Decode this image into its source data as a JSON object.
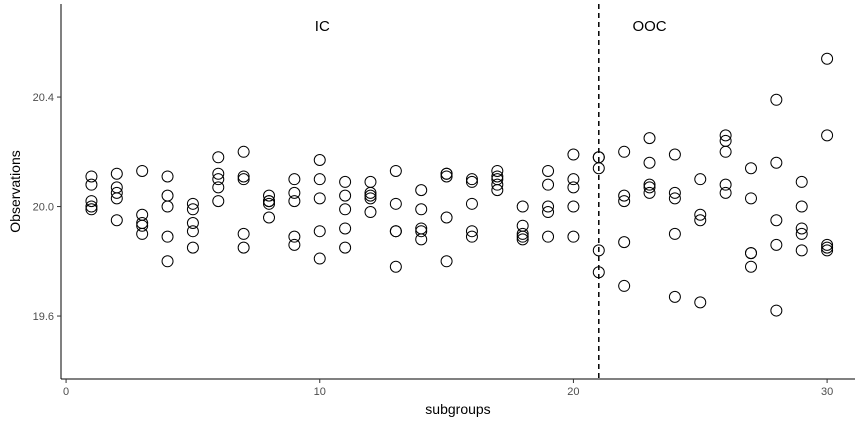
{
  "chart_data": {
    "type": "scatter",
    "title": "",
    "xlabel": "subgroups",
    "ylabel": "Observations",
    "xlim": [
      -0.2,
      31.1
    ],
    "ylim": [
      19.37,
      20.74
    ],
    "xticks": [
      0,
      10,
      20,
      30
    ],
    "xtick_labels": [
      "0",
      "10",
      "20",
      "30"
    ],
    "yticks": [
      19.6,
      20.0,
      20.4
    ],
    "ytick_labels": [
      "19.6",
      "20.0",
      "20.4"
    ],
    "grid": false,
    "legend": "none",
    "vline": {
      "x": 21,
      "style": "dashed"
    },
    "annotations": [
      {
        "text": "IC",
        "x": 10.1,
        "y": 20.66
      },
      {
        "text": "OOC",
        "x": 23.0,
        "y": 20.66
      }
    ],
    "marker": {
      "shape": "open-circle",
      "edge_color": "#000000",
      "fill": "none"
    },
    "points": [
      [
        1,
        20.11
      ],
      [
        1,
        20.08
      ],
      [
        1,
        20.02
      ],
      [
        1,
        20.0
      ],
      [
        1,
        19.99
      ],
      [
        2,
        20.12
      ],
      [
        2,
        20.07
      ],
      [
        2,
        20.05
      ],
      [
        2,
        20.03
      ],
      [
        2,
        19.95
      ],
      [
        3,
        20.13
      ],
      [
        3,
        19.97
      ],
      [
        3,
        19.94
      ],
      [
        3,
        19.93
      ],
      [
        3,
        19.9
      ],
      [
        4,
        20.11
      ],
      [
        4,
        20.04
      ],
      [
        4,
        20.0
      ],
      [
        4,
        19.89
      ],
      [
        4,
        19.8
      ],
      [
        5,
        20.01
      ],
      [
        5,
        19.99
      ],
      [
        5,
        19.94
      ],
      [
        5,
        19.91
      ],
      [
        5,
        19.85
      ],
      [
        6,
        20.18
      ],
      [
        6,
        20.12
      ],
      [
        6,
        20.1
      ],
      [
        6,
        20.07
      ],
      [
        6,
        20.02
      ],
      [
        7,
        20.2
      ],
      [
        7,
        20.11
      ],
      [
        7,
        20.1
      ],
      [
        7,
        19.9
      ],
      [
        7,
        19.85
      ],
      [
        8,
        20.04
      ],
      [
        8,
        20.02
      ],
      [
        8,
        20.02
      ],
      [
        8,
        20.01
      ],
      [
        8,
        19.96
      ],
      [
        9,
        20.1
      ],
      [
        9,
        20.05
      ],
      [
        9,
        20.02
      ],
      [
        9,
        19.89
      ],
      [
        9,
        19.86
      ],
      [
        10,
        20.17
      ],
      [
        10,
        20.1
      ],
      [
        10,
        20.03
      ],
      [
        10,
        19.91
      ],
      [
        10,
        19.81
      ],
      [
        11,
        20.09
      ],
      [
        11,
        20.04
      ],
      [
        11,
        19.99
      ],
      [
        11,
        19.92
      ],
      [
        11,
        19.85
      ],
      [
        12,
        20.09
      ],
      [
        12,
        20.05
      ],
      [
        12,
        20.04
      ],
      [
        12,
        20.03
      ],
      [
        12,
        19.98
      ],
      [
        13,
        20.13
      ],
      [
        13,
        20.01
      ],
      [
        13,
        19.91
      ],
      [
        13,
        19.91
      ],
      [
        13,
        19.78
      ],
      [
        14,
        20.06
      ],
      [
        14,
        19.99
      ],
      [
        14,
        19.92
      ],
      [
        14,
        19.91
      ],
      [
        14,
        19.88
      ],
      [
        15,
        20.12
      ],
      [
        15,
        20.12
      ],
      [
        15,
        20.11
      ],
      [
        15,
        19.96
      ],
      [
        15,
        19.8
      ],
      [
        16,
        20.1
      ],
      [
        16,
        20.09
      ],
      [
        16,
        20.01
      ],
      [
        16,
        19.91
      ],
      [
        16,
        19.89
      ],
      [
        17,
        20.13
      ],
      [
        17,
        20.11
      ],
      [
        17,
        20.1
      ],
      [
        17,
        20.08
      ],
      [
        17,
        20.06
      ],
      [
        18,
        20.0
      ],
      [
        18,
        19.93
      ],
      [
        18,
        19.9
      ],
      [
        18,
        19.89
      ],
      [
        18,
        19.88
      ],
      [
        19,
        20.13
      ],
      [
        19,
        20.08
      ],
      [
        19,
        20.0
      ],
      [
        19,
        19.98
      ],
      [
        19,
        19.89
      ],
      [
        20,
        20.19
      ],
      [
        20,
        20.1
      ],
      [
        20,
        20.07
      ],
      [
        20,
        20.0
      ],
      [
        20,
        19.89
      ],
      [
        21,
        20.18
      ],
      [
        21,
        20.18
      ],
      [
        21,
        20.14
      ],
      [
        21,
        19.84
      ],
      [
        21,
        19.76
      ],
      [
        22,
        20.2
      ],
      [
        22,
        20.04
      ],
      [
        22,
        20.02
      ],
      [
        22,
        19.87
      ],
      [
        22,
        19.71
      ],
      [
        23,
        20.25
      ],
      [
        23,
        20.16
      ],
      [
        23,
        20.08
      ],
      [
        23,
        20.07
      ],
      [
        23,
        20.05
      ],
      [
        24,
        20.19
      ],
      [
        24,
        20.05
      ],
      [
        24,
        20.03
      ],
      [
        24,
        19.9
      ],
      [
        24,
        19.67
      ],
      [
        25,
        20.1
      ],
      [
        25,
        19.97
      ],
      [
        25,
        19.95
      ],
      [
        25,
        19.65
      ],
      [
        26,
        20.26
      ],
      [
        26,
        20.24
      ],
      [
        26,
        20.2
      ],
      [
        26,
        20.08
      ],
      [
        26,
        20.05
      ],
      [
        27,
        20.14
      ],
      [
        27,
        20.03
      ],
      [
        27,
        19.83
      ],
      [
        27,
        19.83
      ],
      [
        27,
        19.78
      ],
      [
        28,
        20.39
      ],
      [
        28,
        20.16
      ],
      [
        28,
        19.95
      ],
      [
        28,
        19.86
      ],
      [
        28,
        19.62
      ],
      [
        29,
        20.09
      ],
      [
        29,
        20.0
      ],
      [
        29,
        19.92
      ],
      [
        29,
        19.9
      ],
      [
        29,
        19.84
      ],
      [
        30,
        20.54
      ],
      [
        30,
        20.26
      ],
      [
        30,
        19.86
      ],
      [
        30,
        19.85
      ],
      [
        30,
        19.84
      ]
    ]
  }
}
